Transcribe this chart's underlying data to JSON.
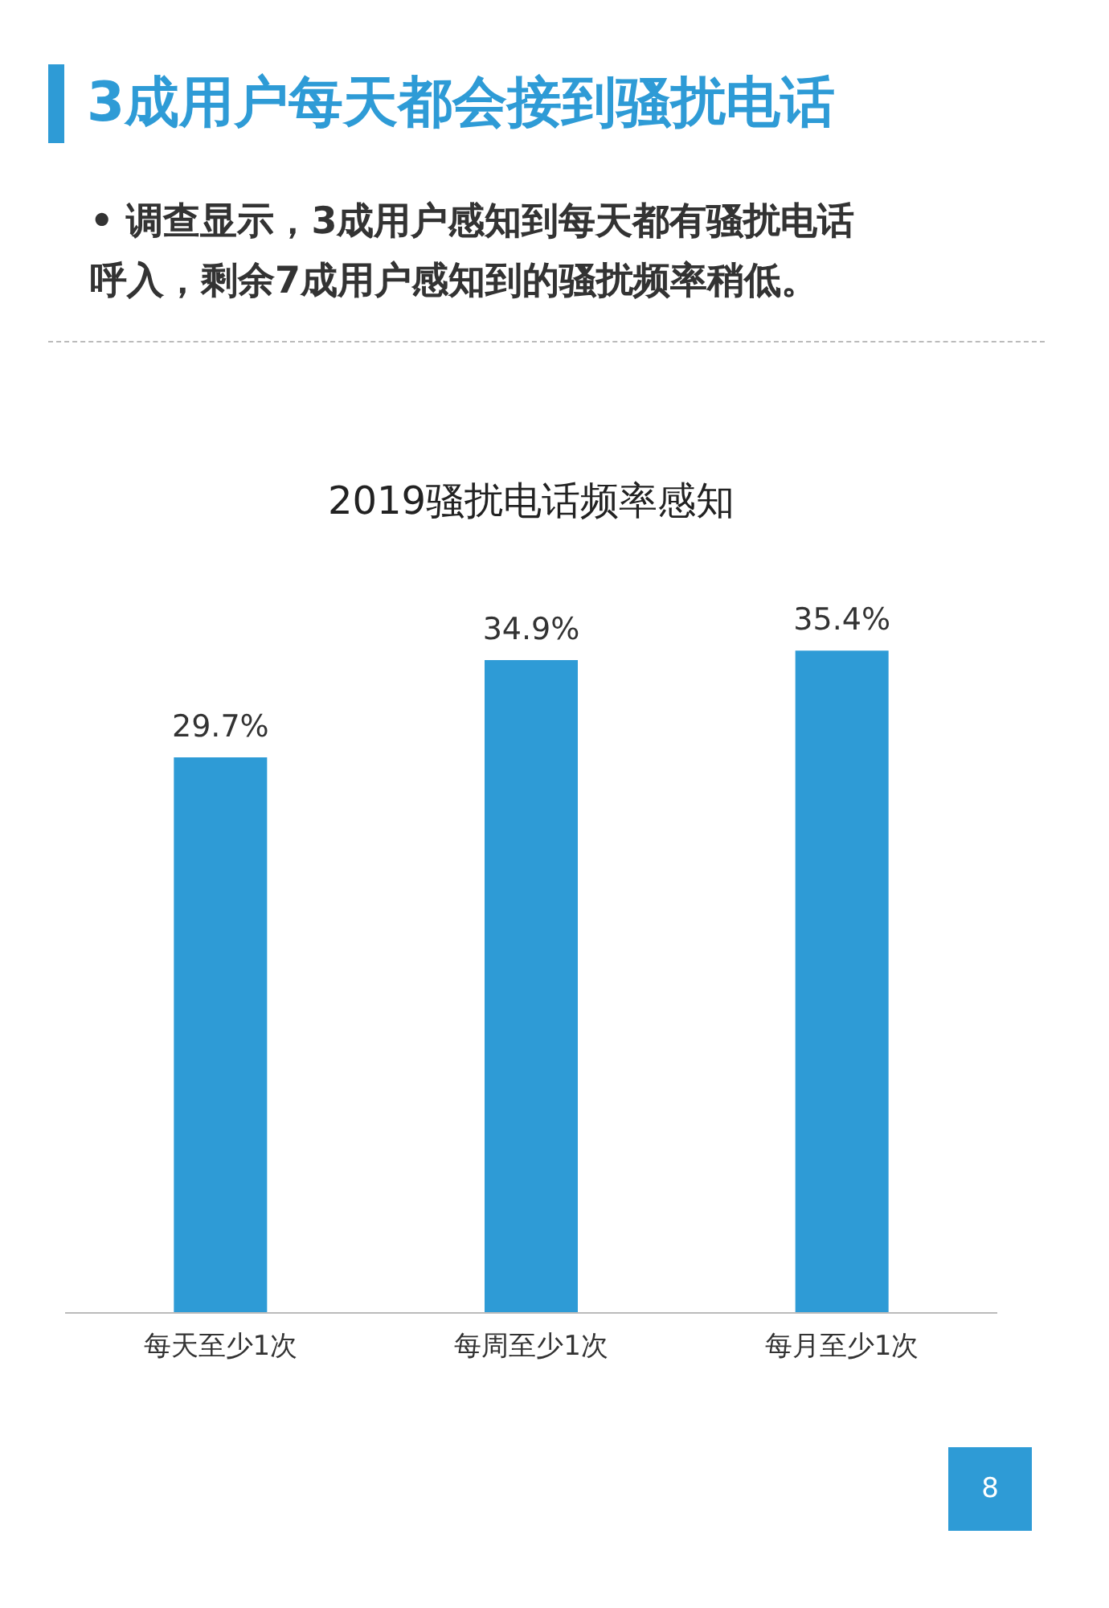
{
  "chart_data": {
    "type": "bar",
    "title": "2019骚扰电话频率感知",
    "categories": [
      "每天至少1次",
      "每周至少1次",
      "每月至少1次"
    ],
    "values": [
      29.7,
      34.9,
      35.4
    ],
    "value_labels": [
      "29.7%",
      "34.9%",
      "35.4%"
    ],
    "color": "#2e9bd6",
    "grid": false,
    "annotations": [
      "3成用户每天都会接到骚扰电话",
      "• 调查显示，3成用户感知到每天都有骚扰电话呼入，剩余7成用户感知到的骚扰频率稍低。",
      "8"
    ]
  }
}
